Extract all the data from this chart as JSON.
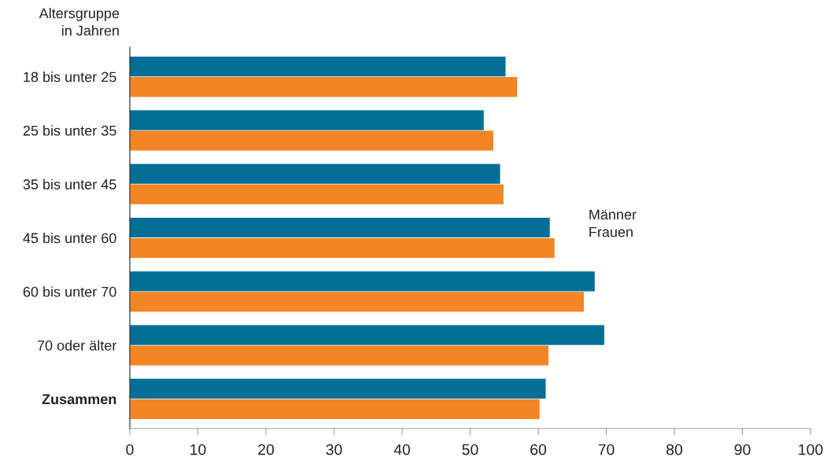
{
  "chart_data": {
    "type": "bar",
    "orientation": "horizontal",
    "ylabel": "Altersgruppe\nin Jahren",
    "categories": [
      "18 bis unter 25",
      "25 bis unter 35",
      "35 bis unter 45",
      "45 bis unter 60",
      "60 bis unter 70",
      "70 oder älter",
      "Zusammen"
    ],
    "series": [
      {
        "name": "Männer",
        "color": "#036f96",
        "values": [
          55.2,
          52.0,
          54.4,
          61.7,
          68.3,
          69.7,
          61.1
        ]
      },
      {
        "name": "Frauen",
        "color": "#f48523",
        "values": [
          56.9,
          53.4,
          54.9,
          62.4,
          66.7,
          61.5,
          60.2
        ]
      }
    ],
    "xlim": [
      0,
      100
    ],
    "xticks": [
      0,
      10,
      20,
      30,
      40,
      50,
      60,
      70,
      80,
      90,
      100
    ],
    "grid": false,
    "legend": "right"
  }
}
